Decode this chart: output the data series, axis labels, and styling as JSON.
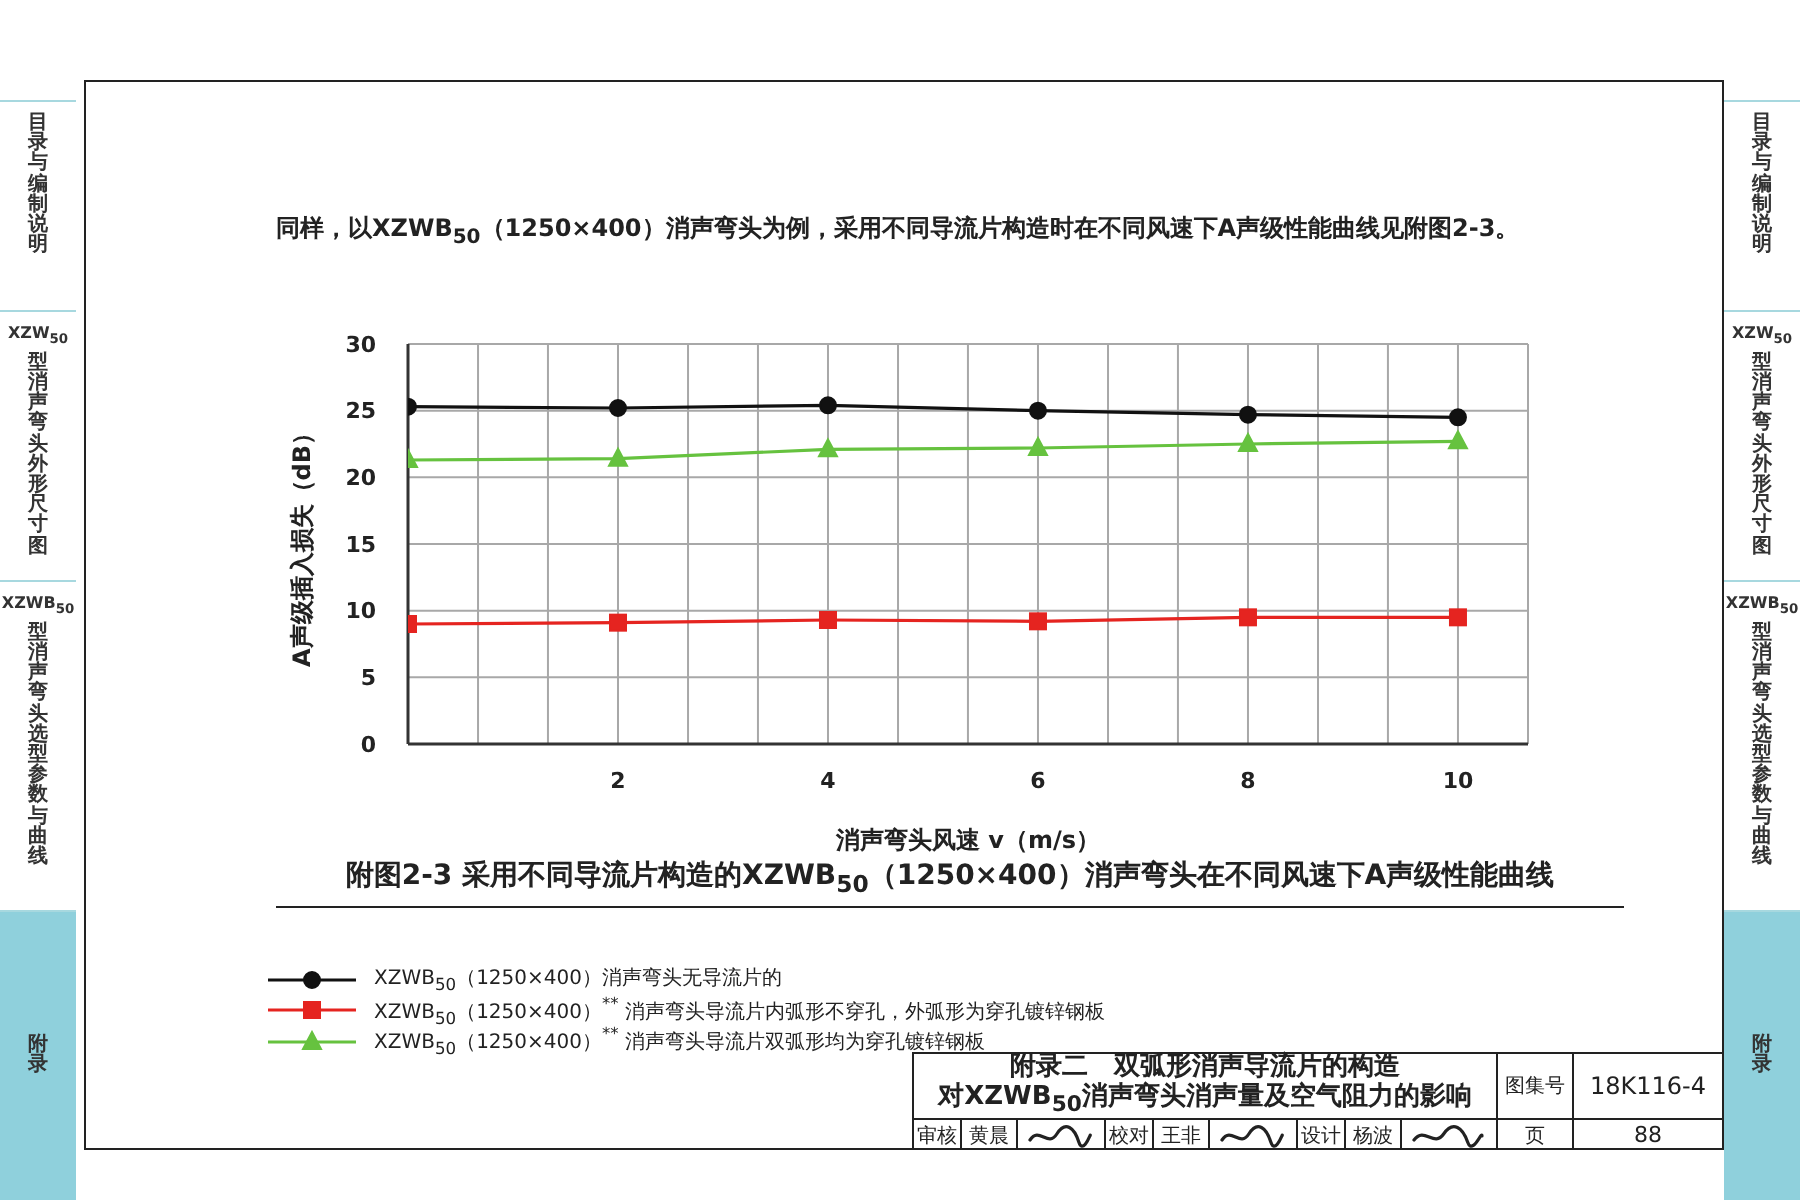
{
  "chart_data": {
    "type": "line",
    "title": "附图2-3 采用不同导流片构造的XZWB$_{50}$（1250×400）消声弯头在不同风速下A声级性能曲线",
    "xlabel": "消声弯头风速 v（m/s）",
    "ylabel": "A声级插入损失（dB）",
    "x": [
      0,
      2,
      4,
      6,
      8,
      10
    ],
    "series": [
      {
        "name": "XZWB$_{50}$（1250×400）消声弯头无导流片的",
        "color": "#111111",
        "marker": "circle",
        "values": [
          25.3,
          25.2,
          25.4,
          25.0,
          24.7,
          24.5
        ]
      },
      {
        "name": "XZWB$_{50}$（1250×400）$^{**}$ 消声弯头导流片内弧形不穿孔，外弧形为穿孔镀锌钢板",
        "color": "#e52420",
        "marker": "square",
        "values": [
          9.0,
          9.1,
          9.3,
          9.2,
          9.5,
          9.5
        ]
      },
      {
        "name": "XZWB$_{50}$（1250×400）$^{**}$ 消声弯头导流片双弧形均为穿孔镀锌钢板",
        "color": "#66c23f",
        "marker": "triangle",
        "values": [
          21.3,
          21.4,
          22.1,
          22.2,
          22.5,
          22.7
        ]
      }
    ],
    "xlim": [
      0,
      10.667
    ],
    "xticks": [
      {
        "value": 0.667,
        "label": null
      },
      {
        "value": 1.333,
        "label": null
      },
      2,
      {
        "value": 2.667,
        "label": null
      },
      {
        "value": 3.333,
        "label": null
      },
      4,
      {
        "value": 4.667,
        "label": null
      },
      {
        "value": 5.333,
        "label": null
      },
      6,
      {
        "value": 6.667,
        "label": null
      },
      {
        "value": 7.333,
        "label": null
      },
      8,
      {
        "value": 8.667,
        "label": null
      },
      {
        "value": 9.333,
        "label": null
      },
      10,
      {
        "value": 10.667,
        "label": null
      }
    ],
    "ylim": [
      0,
      30
    ],
    "yticks": [
      0,
      5,
      10,
      15,
      20,
      25,
      30
    ],
    "grid": true,
    "legend": "bottom",
    "line_style": "solid",
    "annotations": [
      "同样，以XZWB$_{50}$（1250×400）消声弯头为例，采用不同导流片构造时在不同风速下A声级性能曲线见附图2-3。",
      "目录与编制说明",
      "XZW$_{50}$型消声弯头外形尺寸图",
      "XZWB$_{50}$型消声弯头选型参数与曲线",
      "附录",
      "目录与编制说明",
      "XZW$_{50}$型消声弯头外形尺寸图",
      "XZWB$_{50}$型消声弯头选型参数与曲线",
      "附录",
      "附录二　双弧形消声导流片的构造",
      "对XZWB$_{50}$消声弯头消声量及空气阻力的影响",
      "图集号",
      "18K116-4",
      "审核",
      "黄晨",
      "校对",
      "王非",
      "设计",
      "杨波",
      "页",
      "88"
    ]
  }
}
